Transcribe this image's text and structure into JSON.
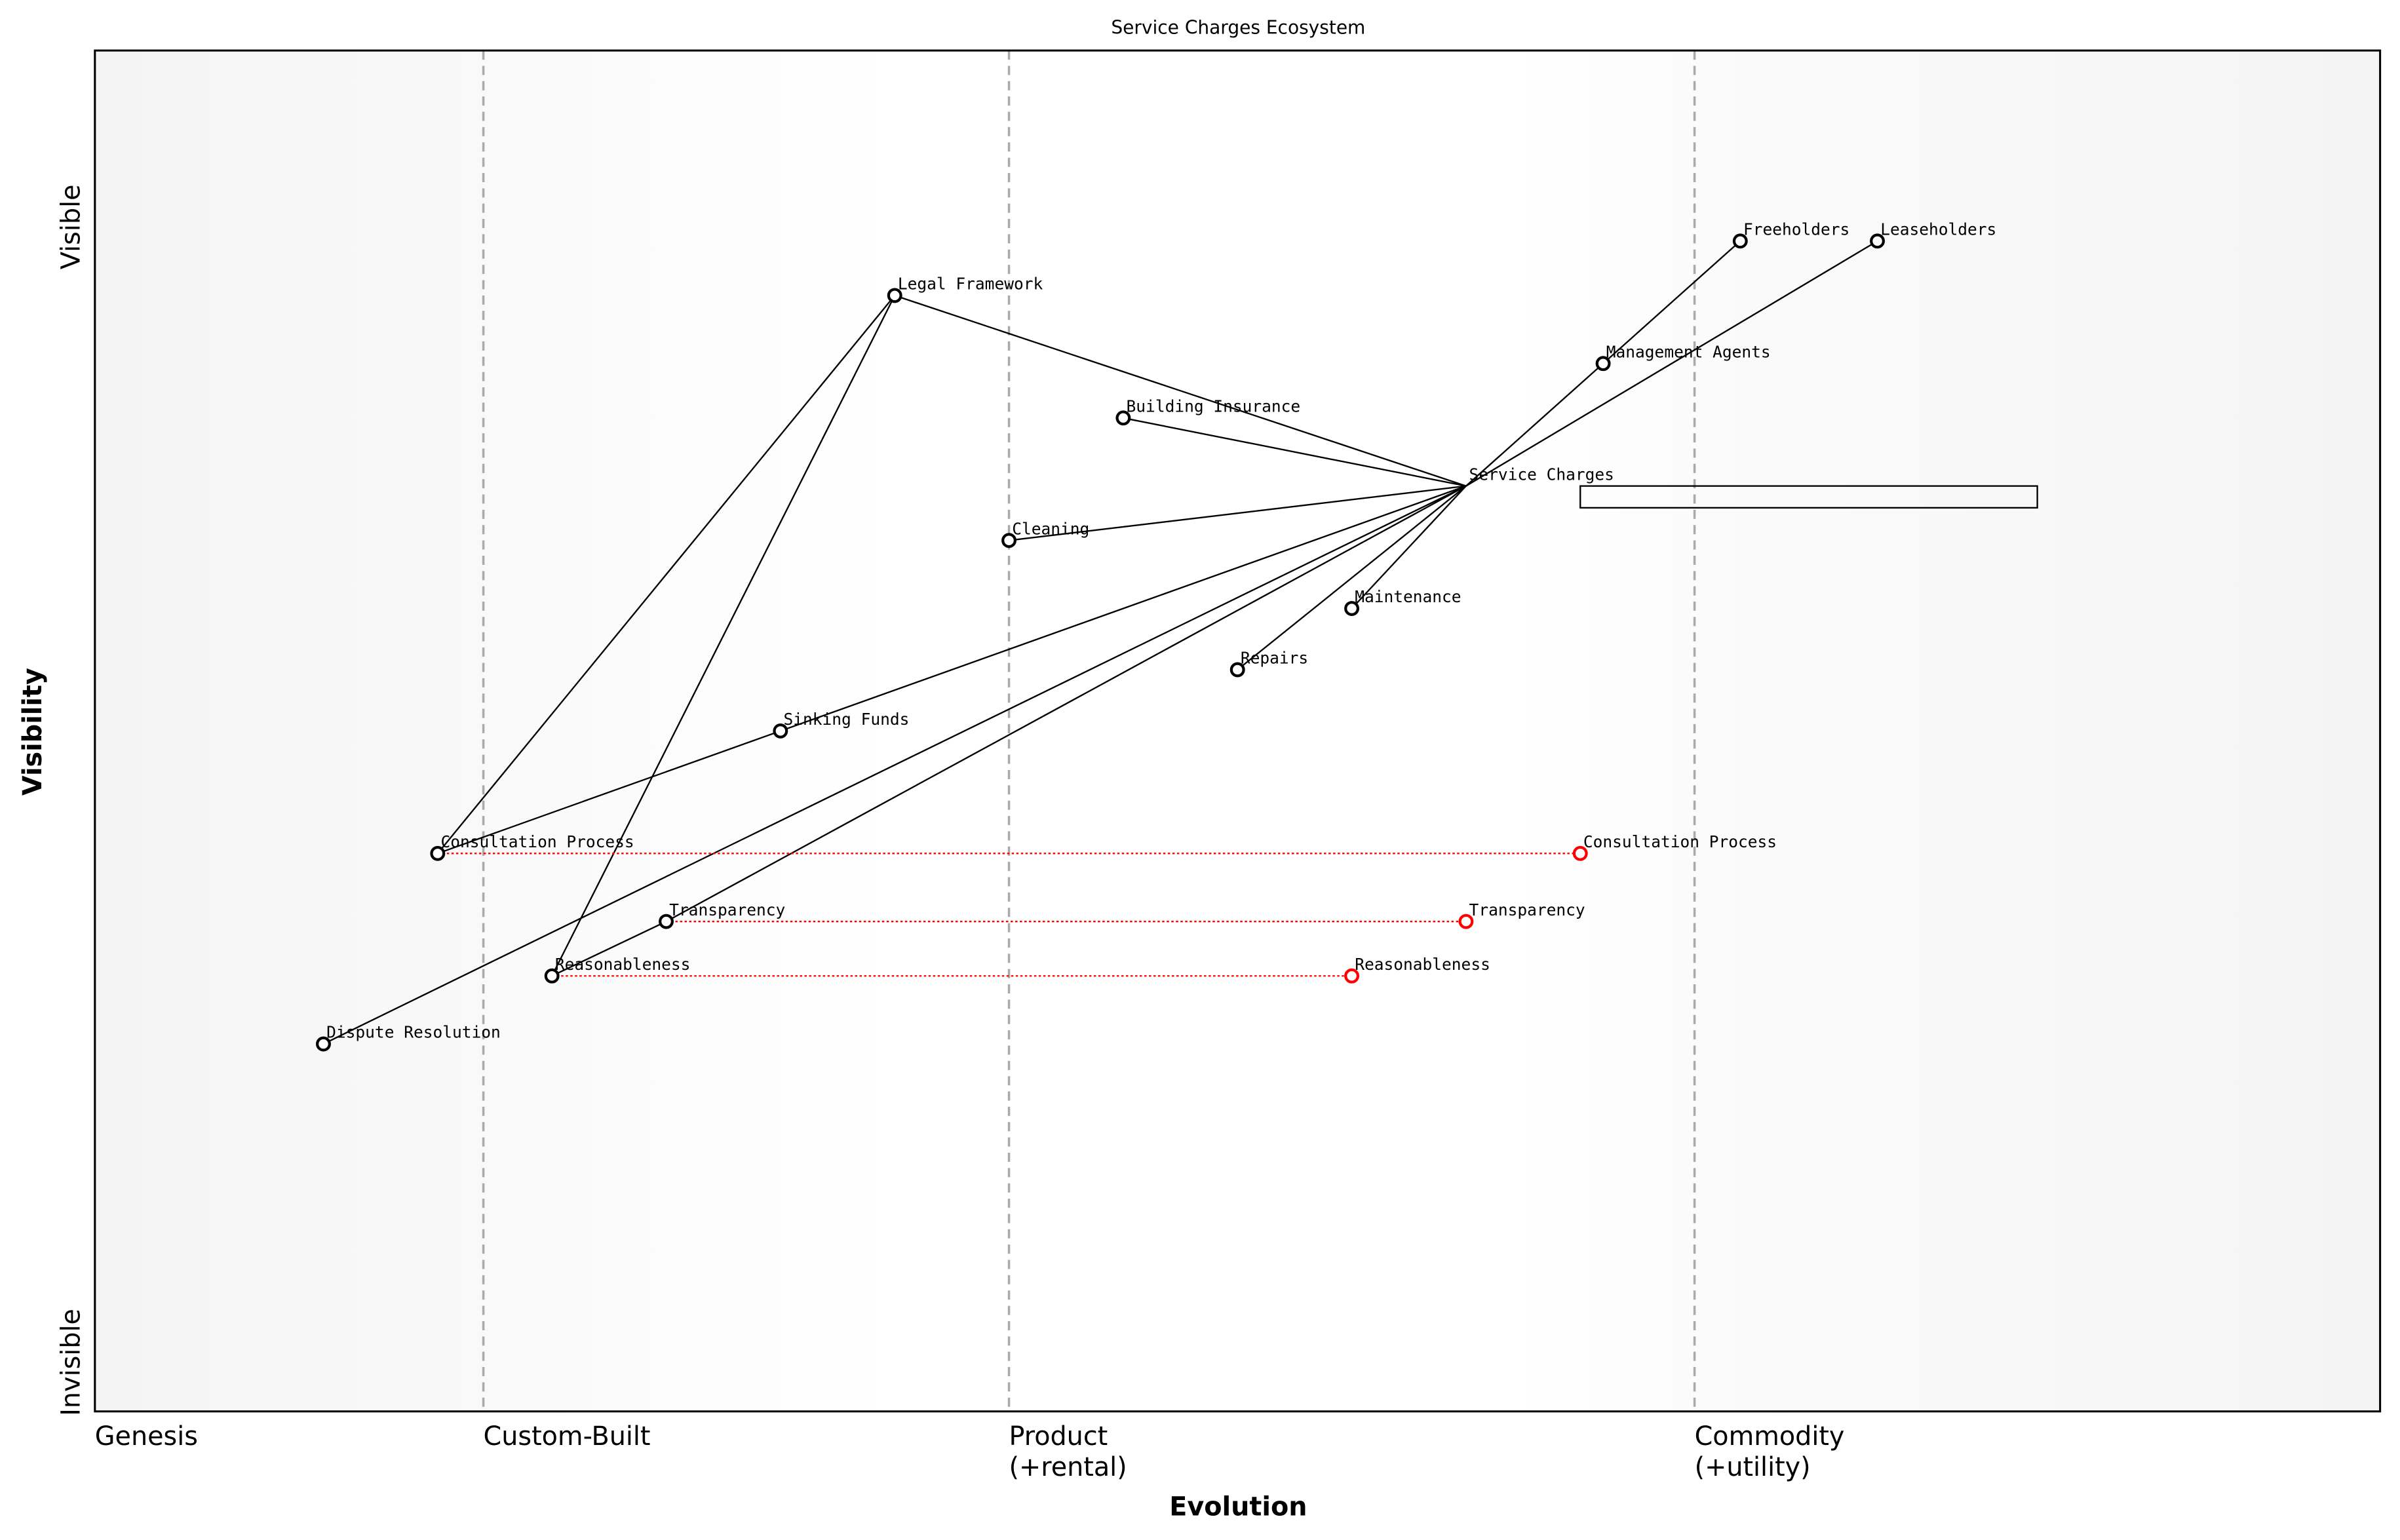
{
  "title": "Service Charges Ecosystem",
  "x_axis": {
    "label": "Evolution",
    "stages": [
      {
        "label": "Genesis",
        "label2": "",
        "evolution": 0.0
      },
      {
        "label": "Custom-Built",
        "label2": "",
        "evolution": 0.17
      },
      {
        "label": "Product",
        "label2": "(+rental)",
        "evolution": 0.4
      },
      {
        "label": "Commodity",
        "label2": "(+utility)",
        "evolution": 0.7
      }
    ]
  },
  "y_axis": {
    "label": "Visibility",
    "top_label": "Visible",
    "bottom_label": "Invisible"
  },
  "colors": {
    "node": "#000000",
    "evolved": "#ff0000",
    "link": "#000000",
    "stage_line": "#aaaaaa",
    "band": "#f5f5f5"
  },
  "components": [
    {
      "id": "freeholders",
      "name": "Freeholders",
      "evolution": 0.72,
      "visibility": 0.86
    },
    {
      "id": "leaseholders",
      "name": "Leaseholders",
      "evolution": 0.78,
      "visibility": 0.86
    },
    {
      "id": "management-agents",
      "name": "Management Agents",
      "evolution": 0.66,
      "visibility": 0.77
    },
    {
      "id": "legal-framework",
      "name": "Legal Framework",
      "evolution": 0.35,
      "visibility": 0.82
    },
    {
      "id": "building-insurance",
      "name": "Building Insurance",
      "evolution": 0.45,
      "visibility": 0.73
    },
    {
      "id": "service-charges",
      "name": "Service Charges",
      "evolution": 0.6,
      "visibility": 0.68,
      "no_marker": true
    },
    {
      "id": "cleaning",
      "name": "Cleaning",
      "evolution": 0.4,
      "visibility": 0.64
    },
    {
      "id": "maintenance",
      "name": "Maintenance",
      "evolution": 0.55,
      "visibility": 0.59
    },
    {
      "id": "repairs",
      "name": "Repairs",
      "evolution": 0.5,
      "visibility": 0.545
    },
    {
      "id": "sinking-funds",
      "name": "Sinking Funds",
      "evolution": 0.3,
      "visibility": 0.5
    },
    {
      "id": "consultation-process",
      "name": "Consultation Process",
      "evolution": 0.15,
      "visibility": 0.41
    },
    {
      "id": "transparency",
      "name": "Transparency",
      "evolution": 0.25,
      "visibility": 0.36
    },
    {
      "id": "reasonableness",
      "name": "Reasonableness",
      "evolution": 0.2,
      "visibility": 0.32
    },
    {
      "id": "dispute-resolution",
      "name": "Dispute Resolution",
      "evolution": 0.1,
      "visibility": 0.27
    }
  ],
  "evolved": [
    {
      "from": "consultation-process",
      "name": "Consultation Process",
      "evolution": 0.65
    },
    {
      "from": "transparency",
      "name": "Transparency",
      "evolution": 0.6
    },
    {
      "from": "reasonableness",
      "name": "Reasonableness",
      "evolution": 0.55
    }
  ],
  "links": [
    [
      "service-charges",
      "management-agents"
    ],
    [
      "management-agents",
      "freeholders"
    ],
    [
      "service-charges",
      "leaseholders"
    ],
    [
      "legal-framework",
      "service-charges"
    ],
    [
      "building-insurance",
      "service-charges"
    ],
    [
      "cleaning",
      "service-charges"
    ],
    [
      "maintenance",
      "service-charges"
    ],
    [
      "repairs",
      "service-charges"
    ],
    [
      "sinking-funds",
      "service-charges"
    ],
    [
      "dispute-resolution",
      "service-charges"
    ],
    [
      "transparency",
      "service-charges"
    ],
    [
      "consultation-process",
      "sinking-funds"
    ],
    [
      "consultation-process",
      "legal-framework"
    ],
    [
      "reasonableness",
      "legal-framework"
    ],
    [
      "reasonableness",
      "transparency"
    ]
  ],
  "annotation_box": {
    "evolution_start": 0.65,
    "evolution_end": 0.85,
    "visibility_top": 0.68,
    "visibility_bottom": 0.664
  }
}
